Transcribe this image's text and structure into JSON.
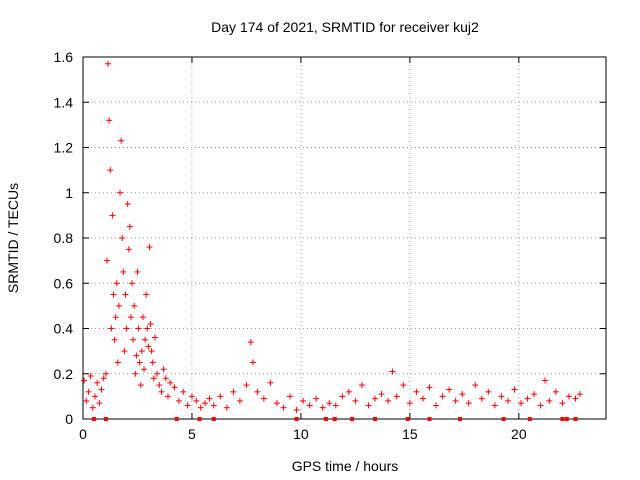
{
  "chart_data": {
    "type": "scatter",
    "title": "Day 174 of 2021, SRMTID for receiver kuj2",
    "xlabel": "GPS time / hours",
    "ylabel": "SRMTID / TECUs",
    "xlim": [
      0,
      24
    ],
    "ylim": [
      0,
      1.6
    ],
    "x_ticks": [
      0,
      5,
      10,
      15,
      20
    ],
    "x_tick_labels": [
      "0",
      "5",
      "10",
      "15",
      "20"
    ],
    "y_ticks": [
      0,
      0.2,
      0.4,
      0.6,
      0.8,
      1.0,
      1.2,
      1.4,
      1.6
    ],
    "y_tick_labels": [
      "0",
      "0.2",
      "0.4",
      "0.6",
      "0.8",
      "1",
      "1.2",
      "1.4",
      "1.6"
    ],
    "grid": true,
    "marker": "+",
    "color": "#ff0000",
    "series": [
      {
        "name": "SRMTID",
        "x": [
          0.05,
          0.15,
          0.25,
          0.35,
          0.45,
          0.55,
          0.65,
          0.75,
          0.85,
          0.95,
          1.05,
          1.1,
          1.15,
          1.2,
          1.25,
          1.3,
          1.35,
          1.4,
          1.45,
          1.5,
          1.55,
          1.6,
          1.65,
          1.7,
          1.75,
          1.8,
          1.85,
          1.9,
          1.95,
          2.0,
          2.05,
          2.1,
          2.15,
          2.2,
          2.25,
          2.3,
          2.35,
          2.4,
          2.45,
          2.5,
          2.55,
          2.6,
          2.65,
          2.7,
          2.75,
          2.8,
          2.85,
          2.9,
          2.95,
          3.0,
          3.05,
          3.1,
          3.15,
          3.2,
          3.25,
          3.3,
          3.4,
          3.5,
          3.6,
          3.7,
          3.8,
          3.9,
          4.0,
          4.2,
          4.4,
          4.6,
          4.8,
          5.0,
          5.2,
          5.4,
          5.6,
          5.8,
          6.0,
          6.3,
          6.6,
          6.9,
          7.2,
          7.5,
          7.7,
          7.8,
          8.0,
          8.3,
          8.6,
          8.9,
          9.2,
          9.5,
          9.8,
          10.1,
          10.4,
          10.7,
          11.0,
          11.3,
          11.6,
          11.9,
          12.2,
          12.5,
          12.8,
          13.1,
          13.4,
          13.7,
          14.0,
          14.2,
          14.4,
          14.7,
          15.0,
          15.3,
          15.6,
          15.9,
          16.2,
          16.5,
          16.8,
          17.1,
          17.4,
          17.7,
          18.0,
          18.3,
          18.6,
          18.9,
          19.2,
          19.5,
          19.8,
          20.1,
          20.4,
          20.7,
          21.0,
          21.2,
          21.4,
          21.7,
          22.0,
          22.3,
          22.6,
          22.8
        ],
        "y": [
          0.17,
          0.08,
          0.12,
          0.19,
          0.05,
          0.1,
          0.16,
          0.07,
          0.13,
          0.18,
          0.2,
          0.7,
          1.57,
          1.32,
          1.1,
          0.4,
          0.9,
          0.55,
          0.35,
          0.45,
          0.6,
          0.25,
          0.5,
          1.0,
          1.23,
          0.8,
          0.65,
          0.3,
          0.55,
          0.4,
          0.95,
          0.75,
          0.85,
          0.45,
          0.6,
          0.35,
          0.5,
          0.2,
          0.28,
          0.65,
          0.4,
          0.25,
          0.15,
          0.3,
          0.45,
          0.22,
          0.35,
          0.55,
          0.4,
          0.32,
          0.76,
          0.42,
          0.3,
          0.25,
          0.18,
          0.36,
          0.2,
          0.15,
          0.12,
          0.22,
          0.18,
          0.1,
          0.16,
          0.14,
          0.08,
          0.12,
          0.06,
          0.1,
          0.08,
          0.05,
          0.07,
          0.09,
          0.06,
          0.1,
          0.05,
          0.12,
          0.08,
          0.15,
          0.34,
          0.25,
          0.12,
          0.09,
          0.16,
          0.07,
          0.05,
          0.1,
          0.04,
          0.08,
          0.06,
          0.09,
          0.05,
          0.07,
          0.06,
          0.1,
          0.12,
          0.08,
          0.15,
          0.06,
          0.09,
          0.11,
          0.08,
          0.21,
          0.1,
          0.15,
          0.07,
          0.12,
          0.09,
          0.14,
          0.06,
          0.1,
          0.13,
          0.08,
          0.11,
          0.07,
          0.15,
          0.09,
          0.12,
          0.06,
          0.1,
          0.08,
          0.13,
          0.07,
          0.09,
          0.11,
          0.06,
          0.17,
          0.08,
          0.12,
          0.07,
          0.1,
          0.09,
          0.11
        ]
      }
    ],
    "gap_marker_x": [
      0.5,
      1.05,
      4.3,
      5.35,
      6.0,
      9.8,
      11.15,
      11.55,
      12.35,
      13.4,
      14.9,
      15.9,
      17.3,
      19.3,
      20.5,
      22.0,
      22.2,
      22.6
    ]
  }
}
